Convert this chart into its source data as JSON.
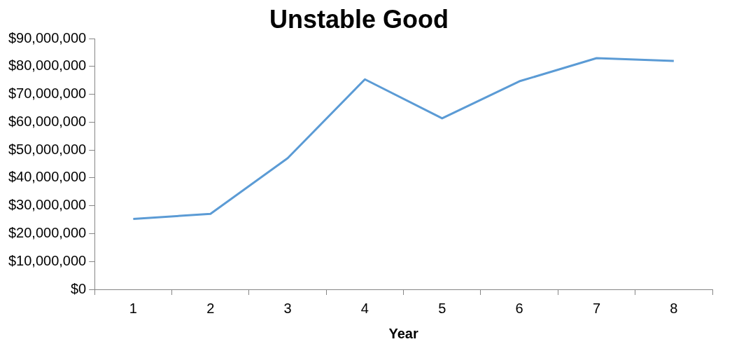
{
  "chart_data": {
    "type": "line",
    "title": "Unstable Good",
    "xlabel": "Year",
    "categories": [
      "1",
      "2",
      "3",
      "4",
      "5",
      "6",
      "7",
      "8"
    ],
    "series": [
      {
        "color": "#5b9bd5",
        "values": [
          25300000,
          27100000,
          47100000,
          75400000,
          61400000,
          74700000,
          83000000,
          82000000
        ]
      }
    ],
    "ylim": [
      0,
      90000000
    ],
    "yticks": [
      {
        "value": 0,
        "label": "$0"
      },
      {
        "value": 10000000,
        "label": "$10,000,000"
      },
      {
        "value": 20000000,
        "label": "$20,000,000"
      },
      {
        "value": 30000000,
        "label": "$30,000,000"
      },
      {
        "value": 40000000,
        "label": "$40,000,000"
      },
      {
        "value": 50000000,
        "label": "$50,000,000"
      },
      {
        "value": 60000000,
        "label": "$60,000,000"
      },
      {
        "value": 70000000,
        "label": "$70,000,000"
      },
      {
        "value": 80000000,
        "label": "$80,000,000"
      },
      {
        "value": 90000000,
        "label": "$90,000,000"
      }
    ],
    "grid": false,
    "legend": false,
    "marker": "none",
    "line_style": "solid"
  }
}
